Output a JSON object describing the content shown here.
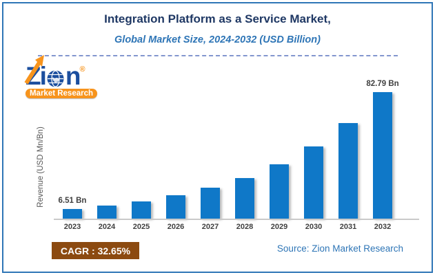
{
  "header": {
    "title": "Integration Platform as a Service Market,",
    "subtitle": "Global Market Size, 2024-2032 (USD Billion)"
  },
  "logo": {
    "brand": "Zion",
    "brand_part_z": "Z",
    "brand_part_i": "i",
    "brand_part_n": "n",
    "registered_mark": "®",
    "banner": "Market Research"
  },
  "chart_data": {
    "type": "bar",
    "title": "Integration Platform as a Service Market, Global Market Size, 2024-2032 (USD Billion)",
    "ylabel": "Revenue (USD Mn/Bn)",
    "xlabel": "",
    "unit": "USD Bn",
    "categories": [
      "2023",
      "2024",
      "2025",
      "2026",
      "2027",
      "2028",
      "2029",
      "2030",
      "2031",
      "2032"
    ],
    "values": [
      6.51,
      8.64,
      11.46,
      15.2,
      20.16,
      26.74,
      35.47,
      47.05,
      62.41,
      82.79
    ],
    "bar_labels": [
      "6.51 Bn",
      "",
      "",
      "",
      "",
      "",
      "",
      "",
      "",
      "82.79 Bn"
    ],
    "ylim": [
      0,
      90
    ],
    "grid": false,
    "legend_position": "none"
  },
  "footer": {
    "cagr": "CAGR : 32.65%",
    "source": "Source: Zion Market Research"
  },
  "colors": {
    "frame_border": "#2E75B6",
    "title": "#1F3864",
    "subtitle": "#2E75B6",
    "dashed": "#8296CE",
    "bar": "#0F78C8",
    "axis": "#C9C9C9",
    "tick": "#3F3F3F",
    "ylab": "#595959",
    "cagr_bg": "#8C4A10",
    "cagr_text": "#FFFFFF",
    "source": "#2E75B6",
    "logo_blue": "#1B4E9E",
    "logo_orange": "#F7941D"
  }
}
